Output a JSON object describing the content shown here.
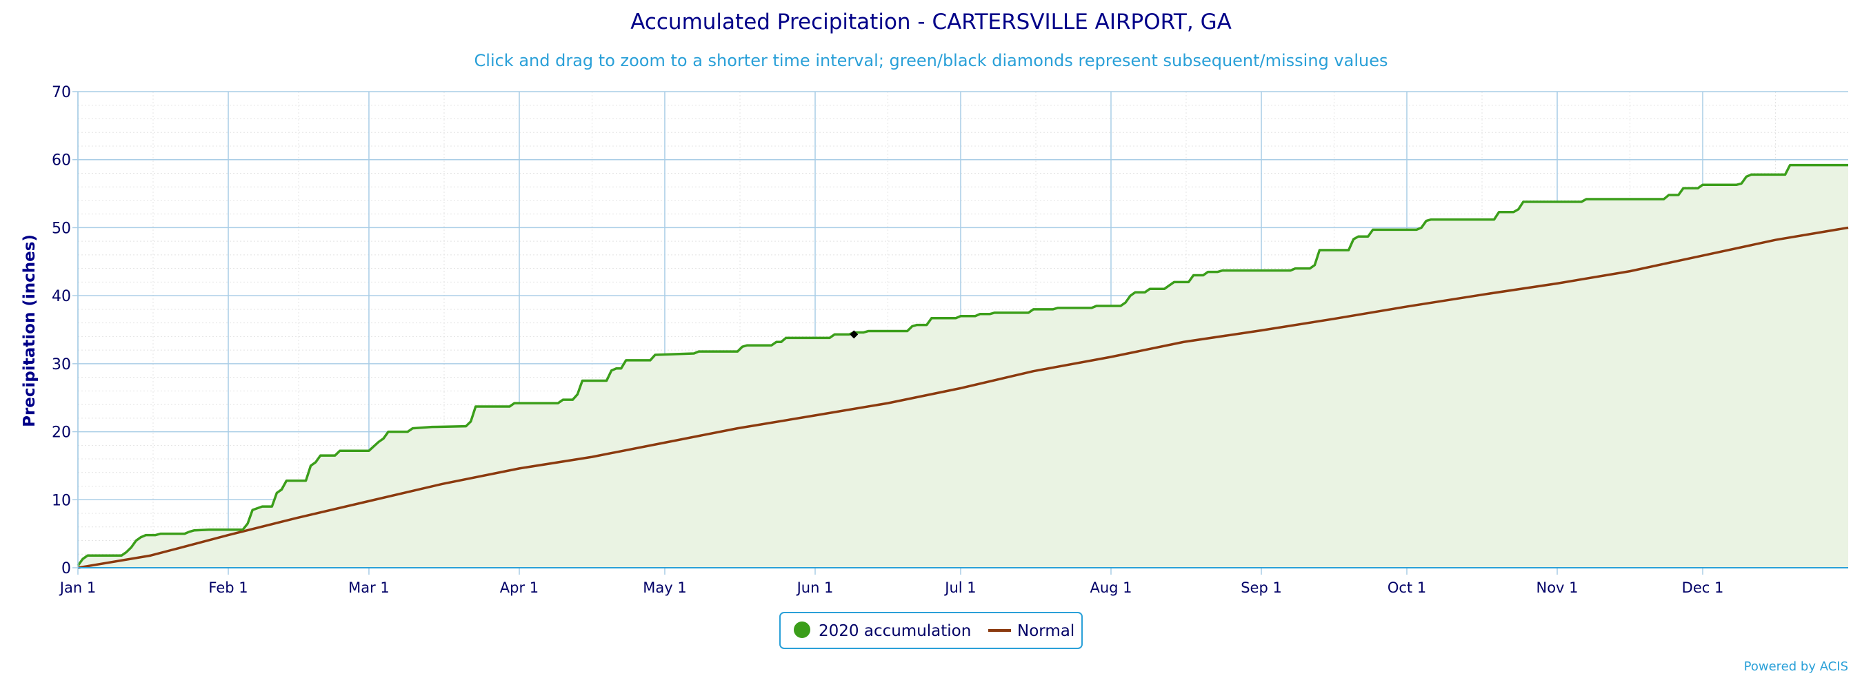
{
  "colors": {
    "title": "#000088",
    "subtitle": "#2aa0d8",
    "axis_text": "#000066",
    "grid_major": "#a9cde6",
    "grid_minor": "#e4e4e4",
    "accum_line": "#3b9e1a",
    "accum_fill": "#eaf3e3",
    "normal_line": "#8b3a0f",
    "legend_border": "#2aa0d8",
    "credit": "#2aa0d8",
    "missing_marker": "#000000"
  },
  "chart_data": {
    "type": "line",
    "title": "Accumulated Precipitation - CARTERSVILLE AIRPORT, GA",
    "subtitle": "Click and drag to zoom to a shorter time interval; green/black diamonds represent subsequent/missing values",
    "ylabel": "Precipitation (inches)",
    "ylim": [
      0,
      70
    ],
    "yticks": [
      0,
      10,
      20,
      30,
      40,
      50,
      60,
      70
    ],
    "xlim_days": [
      0,
      365
    ],
    "xticks": [
      {
        "day": 0,
        "label": "Jan 1"
      },
      {
        "day": 31,
        "label": "Feb 1"
      },
      {
        "day": 60,
        "label": "Mar 1"
      },
      {
        "day": 91,
        "label": "Apr 1"
      },
      {
        "day": 121,
        "label": "May 1"
      },
      {
        "day": 152,
        "label": "Jun 1"
      },
      {
        "day": 182,
        "label": "Jul 1"
      },
      {
        "day": 213,
        "label": "Aug 1"
      },
      {
        "day": 244,
        "label": "Sep 1"
      },
      {
        "day": 274,
        "label": "Oct 1"
      },
      {
        "day": 305,
        "label": "Nov 1"
      },
      {
        "day": 335,
        "label": "Dec 1"
      }
    ],
    "grid": true,
    "legend_position": "bottom-center",
    "series": [
      {
        "name": "2020 accumulation",
        "style": "step-area",
        "points": [
          [
            0,
            0.3
          ],
          [
            1,
            1.3
          ],
          [
            2,
            1.8
          ],
          [
            9,
            1.8
          ],
          [
            10,
            2.3
          ],
          [
            11,
            3.0
          ],
          [
            12,
            4.0
          ],
          [
            13,
            4.5
          ],
          [
            14,
            4.8
          ],
          [
            16,
            4.8
          ],
          [
            17,
            5.0
          ],
          [
            22,
            5.0
          ],
          [
            23,
            5.3
          ],
          [
            24,
            5.5
          ],
          [
            27,
            5.6
          ],
          [
            34,
            5.6
          ],
          [
            35,
            6.5
          ],
          [
            36,
            8.5
          ],
          [
            38,
            9.0
          ],
          [
            40,
            9.0
          ],
          [
            41,
            11.0
          ],
          [
            42,
            11.5
          ],
          [
            43,
            12.8
          ],
          [
            47,
            12.8
          ],
          [
            48,
            15.0
          ],
          [
            49,
            15.5
          ],
          [
            50,
            16.5
          ],
          [
            53,
            16.5
          ],
          [
            54,
            17.2
          ],
          [
            60,
            17.2
          ],
          [
            62,
            18.5
          ],
          [
            63,
            19.0
          ],
          [
            64,
            20.0
          ],
          [
            68,
            20.0
          ],
          [
            69,
            20.5
          ],
          [
            73,
            20.7
          ],
          [
            80,
            20.8
          ],
          [
            81,
            21.5
          ],
          [
            82,
            23.7
          ],
          [
            89,
            23.7
          ],
          [
            90,
            24.2
          ],
          [
            99,
            24.2
          ],
          [
            100,
            24.7
          ],
          [
            102,
            24.7
          ],
          [
            103,
            25.5
          ],
          [
            104,
            27.5
          ],
          [
            109,
            27.5
          ],
          [
            110,
            29.0
          ],
          [
            111,
            29.3
          ],
          [
            112,
            29.3
          ],
          [
            113,
            30.5
          ],
          [
            118,
            30.5
          ],
          [
            119,
            31.3
          ],
          [
            127,
            31.5
          ],
          [
            128,
            31.8
          ],
          [
            136,
            31.8
          ],
          [
            137,
            32.5
          ],
          [
            138,
            32.7
          ],
          [
            143,
            32.7
          ],
          [
            144,
            33.2
          ],
          [
            145,
            33.2
          ],
          [
            146,
            33.8
          ],
          [
            155,
            33.8
          ],
          [
            156,
            34.3
          ],
          [
            159,
            34.3
          ],
          [
            160,
            34.6
          ],
          [
            162,
            34.6
          ],
          [
            163,
            34.8
          ],
          [
            171,
            34.8
          ],
          [
            172,
            35.5
          ],
          [
            173,
            35.7
          ],
          [
            175,
            35.7
          ],
          [
            176,
            36.7
          ],
          [
            181,
            36.7
          ],
          [
            182,
            37.0
          ],
          [
            185,
            37.0
          ],
          [
            186,
            37.3
          ],
          [
            188,
            37.3
          ],
          [
            189,
            37.5
          ],
          [
            196,
            37.5
          ],
          [
            197,
            38.0
          ],
          [
            201,
            38.0
          ],
          [
            202,
            38.2
          ],
          [
            209,
            38.2
          ],
          [
            210,
            38.5
          ],
          [
            215,
            38.5
          ],
          [
            216,
            39.0
          ],
          [
            217,
            40.0
          ],
          [
            218,
            40.5
          ],
          [
            220,
            40.5
          ],
          [
            221,
            41.0
          ],
          [
            224,
            41.0
          ],
          [
            225,
            41.5
          ],
          [
            226,
            42.0
          ],
          [
            229,
            42.0
          ],
          [
            230,
            43.0
          ],
          [
            232,
            43.0
          ],
          [
            233,
            43.5
          ],
          [
            235,
            43.5
          ],
          [
            236,
            43.7
          ],
          [
            250,
            43.7
          ],
          [
            251,
            44.0
          ],
          [
            254,
            44.0
          ],
          [
            255,
            44.5
          ],
          [
            256,
            46.7
          ],
          [
            262,
            46.7
          ],
          [
            263,
            48.3
          ],
          [
            264,
            48.7
          ],
          [
            266,
            48.7
          ],
          [
            267,
            49.7
          ],
          [
            276,
            49.7
          ],
          [
            277,
            50.0
          ],
          [
            278,
            51.0
          ],
          [
            279,
            51.2
          ],
          [
            292,
            51.2
          ],
          [
            293,
            52.3
          ],
          [
            296,
            52.3
          ],
          [
            297,
            52.7
          ],
          [
            298,
            53.8
          ],
          [
            310,
            53.8
          ],
          [
            311,
            54.2
          ],
          [
            327,
            54.2
          ],
          [
            328,
            54.8
          ],
          [
            330,
            54.8
          ],
          [
            331,
            55.8
          ],
          [
            334,
            55.8
          ],
          [
            335,
            56.3
          ],
          [
            342,
            56.3
          ],
          [
            343,
            56.5
          ],
          [
            344,
            57.5
          ],
          [
            345,
            57.8
          ],
          [
            352,
            57.8
          ],
          [
            353,
            59.2
          ],
          [
            365,
            59.2
          ]
        ]
      },
      {
        "name": "Normal",
        "style": "line",
        "points": [
          [
            0,
            0
          ],
          [
            15,
            1.8
          ],
          [
            31,
            4.8
          ],
          [
            45,
            7.3
          ],
          [
            60,
            9.8
          ],
          [
            75,
            12.3
          ],
          [
            91,
            14.6
          ],
          [
            106,
            16.3
          ],
          [
            121,
            18.4
          ],
          [
            136,
            20.5
          ],
          [
            152,
            22.4
          ],
          [
            167,
            24.2
          ],
          [
            182,
            26.4
          ],
          [
            197,
            28.9
          ],
          [
            213,
            31.0
          ],
          [
            228,
            33.2
          ],
          [
            244,
            34.9
          ],
          [
            259,
            36.6
          ],
          [
            274,
            38.4
          ],
          [
            290,
            40.2
          ],
          [
            305,
            41.8
          ],
          [
            320,
            43.6
          ],
          [
            335,
            45.9
          ],
          [
            350,
            48.2
          ],
          [
            365,
            50.0
          ]
        ]
      }
    ],
    "missing_markers": [
      {
        "day": 160,
        "value": 34.3
      }
    ],
    "legend": {
      "accum_label": "2020 accumulation",
      "normal_label": "Normal"
    },
    "credit": "Powered by ACIS"
  }
}
